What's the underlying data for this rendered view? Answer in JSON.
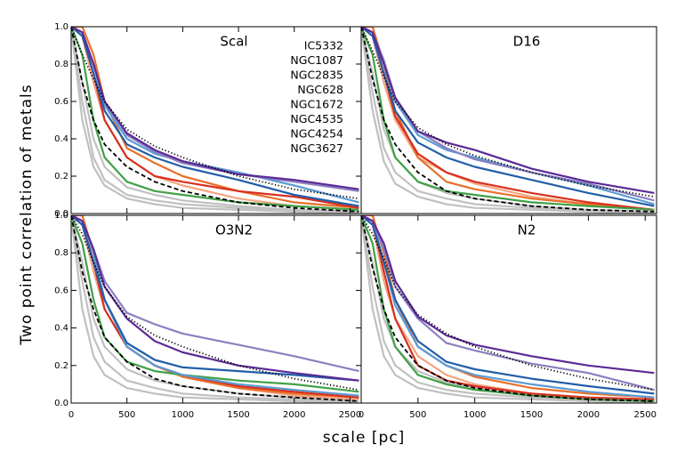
{
  "figure": {
    "xlabel": "scale [pc]",
    "ylabel": "Two point correlation of metals"
  },
  "chart_data": [
    {
      "type": "line",
      "title": "Scal",
      "legend": "top-right",
      "x": [
        0,
        100,
        200,
        300,
        500,
        750,
        1000,
        1500,
        2000,
        2580
      ],
      "xlim": [
        0,
        2600
      ],
      "ylim": [
        0,
        1.0
      ],
      "xticks": [
        0,
        500,
        1000,
        1500,
        2000,
        2500
      ],
      "yticks": [
        {
          "value": 0,
          "label": "0.0"
        },
        0.2,
        0.4,
        0.6,
        0.8,
        {
          "value": 1,
          "label": "1.0"
        }
      ],
      "background": [
        {
          "color": "#c0c0c0",
          "values": [
            1,
            0.5,
            0.25,
            0.15,
            0.08,
            0.05,
            0.03,
            0.02,
            0.01,
            0.0
          ]
        },
        {
          "color": "#c0c0c0",
          "values": [
            1,
            0.6,
            0.3,
            0.18,
            0.1,
            0.07,
            0.05,
            0.03,
            0.02,
            0.01
          ]
        },
        {
          "color": "#c0c0c0",
          "values": [
            1,
            0.7,
            0.4,
            0.25,
            0.14,
            0.1,
            0.07,
            0.04,
            0.02,
            0.01
          ]
        }
      ],
      "references": [
        {
          "style": "dashed",
          "color": "#000000",
          "values": [
            1,
            0.7,
            0.5,
            0.37,
            0.25,
            0.17,
            0.12,
            0.06,
            0.03,
            0.01
          ]
        },
        {
          "style": "dotted",
          "color": "#000000",
          "values": [
            1,
            0.85,
            0.72,
            0.6,
            0.45,
            0.36,
            0.3,
            0.2,
            0.13,
            0.08
          ]
        }
      ],
      "series": [
        {
          "name": "IC5332",
          "color": "#f4a582",
          "values": [
            1,
            0.95,
            0.7,
            0.5,
            0.3,
            0.2,
            0.15,
            0.08,
            0.04,
            0.02
          ]
        },
        {
          "name": "NGC1087",
          "color": "#e8702a",
          "values": [
            1,
            1,
            0.85,
            0.6,
            0.35,
            0.27,
            0.2,
            0.12,
            0.06,
            0.03
          ]
        },
        {
          "name": "NGC2835",
          "color": "#d7301f",
          "values": [
            1,
            0.97,
            0.75,
            0.5,
            0.3,
            0.2,
            0.17,
            0.12,
            0.09,
            0.03
          ]
        },
        {
          "name": "NGC628",
          "color": "#41a048",
          "values": [
            1,
            0.85,
            0.5,
            0.3,
            0.17,
            0.12,
            0.1,
            0.06,
            0.04,
            0.02
          ]
        },
        {
          "name": "NGC1672",
          "color": "#5b9bd5",
          "values": [
            1,
            0.97,
            0.8,
            0.58,
            0.4,
            0.32,
            0.28,
            0.22,
            0.15,
            0.06
          ]
        },
        {
          "name": "NGC4535",
          "color": "#225ea8",
          "values": [
            1,
            0.95,
            0.75,
            0.55,
            0.37,
            0.3,
            0.25,
            0.18,
            0.1,
            0.04
          ]
        },
        {
          "name": "NGC4254",
          "color": "#8c7fc0",
          "values": [
            1,
            0.97,
            0.8,
            0.6,
            0.42,
            0.33,
            0.27,
            0.21,
            0.17,
            0.12
          ]
        },
        {
          "name": "NGC3627",
          "color": "#5b2a96",
          "values": [
            1,
            0.97,
            0.8,
            0.6,
            0.43,
            0.34,
            0.28,
            0.21,
            0.18,
            0.13
          ]
        }
      ]
    },
    {
      "type": "line",
      "title": "D16",
      "x": [
        0,
        100,
        200,
        300,
        500,
        750,
        1000,
        1500,
        2000,
        2580
      ],
      "xlim": [
        0,
        2600
      ],
      "ylim": [
        0,
        1.0
      ],
      "background": [
        {
          "color": "#c0c0c0",
          "values": [
            1,
            0.55,
            0.28,
            0.16,
            0.09,
            0.05,
            0.03,
            0.02,
            0.01,
            0.0
          ]
        },
        {
          "color": "#c0c0c0",
          "values": [
            1,
            0.65,
            0.35,
            0.22,
            0.12,
            0.08,
            0.05,
            0.03,
            0.02,
            0.01
          ]
        },
        {
          "color": "#c0c0c0",
          "values": [
            1,
            0.75,
            0.45,
            0.3,
            0.17,
            0.11,
            0.08,
            0.04,
            0.02,
            0.01
          ]
        }
      ],
      "references": [
        {
          "style": "dashed",
          "color": "#000000",
          "values": [
            1,
            0.72,
            0.5,
            0.37,
            0.22,
            0.12,
            0.08,
            0.04,
            0.02,
            0.01
          ]
        },
        {
          "style": "dotted",
          "color": "#000000",
          "values": [
            1,
            0.87,
            0.73,
            0.6,
            0.46,
            0.37,
            0.31,
            0.22,
            0.15,
            0.09
          ]
        }
      ],
      "series": [
        {
          "color": "#f4a582",
          "values": [
            1,
            0.95,
            0.7,
            0.5,
            0.3,
            0.22,
            0.16,
            0.09,
            0.05,
            0.02
          ]
        },
        {
          "color": "#e8702a",
          "values": [
            1,
            1,
            0.8,
            0.55,
            0.3,
            0.17,
            0.13,
            0.08,
            0.05,
            0.02
          ]
        },
        {
          "color": "#d7301f",
          "values": [
            1,
            0.97,
            0.75,
            0.52,
            0.32,
            0.22,
            0.17,
            0.11,
            0.06,
            0.02
          ]
        },
        {
          "color": "#41a048",
          "values": [
            1,
            0.85,
            0.5,
            0.3,
            0.17,
            0.12,
            0.1,
            0.06,
            0.04,
            0.02
          ]
        },
        {
          "color": "#5b9bd5",
          "values": [
            1,
            0.97,
            0.8,
            0.6,
            0.42,
            0.34,
            0.3,
            0.22,
            0.15,
            0.05
          ]
        },
        {
          "color": "#225ea8",
          "values": [
            1,
            0.95,
            0.75,
            0.55,
            0.38,
            0.3,
            0.25,
            0.18,
            0.11,
            0.04
          ]
        },
        {
          "color": "#8c7fc0",
          "values": [
            1,
            0.97,
            0.82,
            0.62,
            0.44,
            0.35,
            0.29,
            0.22,
            0.16,
            0.07
          ]
        },
        {
          "color": "#5b2a96",
          "values": [
            1,
            0.97,
            0.8,
            0.62,
            0.44,
            0.38,
            0.34,
            0.24,
            0.17,
            0.11
          ]
        }
      ]
    },
    {
      "type": "line",
      "title": "O3N2",
      "x": [
        0,
        100,
        200,
        300,
        500,
        750,
        1000,
        1500,
        2000,
        2580
      ],
      "xlim": [
        0,
        2600
      ],
      "ylim": [
        0,
        1.0
      ],
      "xticks": [
        0,
        500,
        1000,
        1500,
        2000,
        2500
      ],
      "yticks": [
        {
          "value": 0,
          "label": "0.0"
        },
        0.2,
        0.4,
        0.6,
        0.8,
        {
          "value": 1,
          "label": "1.0"
        }
      ],
      "background": [
        {
          "color": "#c0c0c0",
          "values": [
            1,
            0.5,
            0.25,
            0.15,
            0.08,
            0.05,
            0.03,
            0.02,
            0.01,
            0.0
          ]
        },
        {
          "color": "#c0c0c0",
          "values": [
            1,
            0.65,
            0.35,
            0.22,
            0.12,
            0.08,
            0.05,
            0.03,
            0.02,
            0.01
          ]
        },
        {
          "color": "#c0c0c0",
          "values": [
            1,
            0.75,
            0.45,
            0.3,
            0.18,
            0.12,
            0.09,
            0.05,
            0.03,
            0.01
          ]
        }
      ],
      "references": [
        {
          "style": "dashed",
          "color": "#000000",
          "values": [
            1,
            0.7,
            0.5,
            0.35,
            0.22,
            0.13,
            0.09,
            0.05,
            0.03,
            0.01
          ]
        },
        {
          "style": "dotted",
          "color": "#000000",
          "values": [
            1,
            0.9,
            0.75,
            0.62,
            0.46,
            0.36,
            0.3,
            0.2,
            0.13,
            0.07
          ]
        }
      ],
      "series": [
        {
          "color": "#f4a582",
          "values": [
            1,
            0.95,
            0.7,
            0.5,
            0.3,
            0.2,
            0.14,
            0.08,
            0.04,
            0.02
          ]
        },
        {
          "color": "#e8702a",
          "values": [
            1,
            1,
            0.8,
            0.55,
            0.3,
            0.2,
            0.14,
            0.08,
            0.05,
            0.03
          ]
        },
        {
          "color": "#d7301f",
          "values": [
            1,
            0.97,
            0.75,
            0.5,
            0.3,
            0.2,
            0.15,
            0.09,
            0.06,
            0.03
          ]
        },
        {
          "color": "#41a048",
          "values": [
            1,
            0.85,
            0.55,
            0.35,
            0.22,
            0.17,
            0.15,
            0.12,
            0.1,
            0.06
          ]
        },
        {
          "color": "#5b9bd5",
          "values": [
            1,
            0.97,
            0.8,
            0.55,
            0.3,
            0.2,
            0.15,
            0.1,
            0.07,
            0.04
          ]
        },
        {
          "color": "#225ea8",
          "values": [
            1,
            0.95,
            0.75,
            0.55,
            0.32,
            0.23,
            0.19,
            0.17,
            0.15,
            0.12
          ]
        },
        {
          "color": "#8c7fc0",
          "values": [
            1,
            0.97,
            0.82,
            0.65,
            0.48,
            0.42,
            0.37,
            0.31,
            0.25,
            0.17
          ]
        },
        {
          "color": "#5b2a96",
          "values": [
            1,
            0.97,
            0.82,
            0.62,
            0.45,
            0.33,
            0.27,
            0.2,
            0.16,
            0.12
          ]
        }
      ]
    },
    {
      "type": "line",
      "title": "N2",
      "x": [
        0,
        100,
        200,
        300,
        500,
        750,
        1000,
        1500,
        2000,
        2580
      ],
      "xlim": [
        0,
        2600
      ],
      "ylim": [
        0,
        1.0
      ],
      "xticks": [
        0,
        500,
        1000,
        1500,
        2000,
        2500
      ],
      "background": [
        {
          "color": "#c0c0c0",
          "values": [
            1,
            0.5,
            0.25,
            0.15,
            0.08,
            0.05,
            0.03,
            0.02,
            0.01,
            0.0
          ]
        },
        {
          "color": "#c0c0c0",
          "values": [
            1,
            0.62,
            0.33,
            0.2,
            0.11,
            0.07,
            0.05,
            0.03,
            0.02,
            0.01
          ]
        },
        {
          "color": "#c0c0c0",
          "values": [
            1,
            0.75,
            0.45,
            0.3,
            0.17,
            0.11,
            0.08,
            0.04,
            0.02,
            0.01
          ]
        }
      ],
      "references": [
        {
          "style": "dashed",
          "color": "#000000",
          "values": [
            1,
            0.72,
            0.5,
            0.35,
            0.2,
            0.12,
            0.08,
            0.04,
            0.02,
            0.01
          ]
        },
        {
          "style": "dotted",
          "color": "#000000",
          "values": [
            1,
            0.9,
            0.77,
            0.62,
            0.47,
            0.37,
            0.3,
            0.2,
            0.13,
            0.07
          ]
        }
      ],
      "series": [
        {
          "color": "#f4a582",
          "values": [
            1,
            0.95,
            0.65,
            0.45,
            0.25,
            0.15,
            0.1,
            0.05,
            0.03,
            0.01
          ]
        },
        {
          "color": "#e8702a",
          "values": [
            1,
            1,
            0.8,
            0.55,
            0.3,
            0.2,
            0.14,
            0.08,
            0.05,
            0.03
          ]
        },
        {
          "color": "#d7301f",
          "values": [
            1,
            0.97,
            0.7,
            0.45,
            0.2,
            0.12,
            0.09,
            0.05,
            0.03,
            0.02
          ]
        },
        {
          "color": "#41a048",
          "values": [
            1,
            0.85,
            0.5,
            0.3,
            0.15,
            0.1,
            0.07,
            0.04,
            0.02,
            0.01
          ]
        },
        {
          "color": "#5b9bd5",
          "values": [
            1,
            0.97,
            0.75,
            0.52,
            0.3,
            0.2,
            0.15,
            0.1,
            0.06,
            0.03
          ]
        },
        {
          "color": "#225ea8",
          "values": [
            1,
            0.95,
            0.75,
            0.55,
            0.33,
            0.22,
            0.18,
            0.13,
            0.09,
            0.05
          ]
        },
        {
          "color": "#8c7fc0",
          "values": [
            1,
            0.97,
            0.82,
            0.62,
            0.45,
            0.32,
            0.28,
            0.21,
            0.16,
            0.07
          ]
        },
        {
          "color": "#5b2a96",
          "values": [
            1,
            0.97,
            0.85,
            0.65,
            0.46,
            0.36,
            0.31,
            0.25,
            0.2,
            0.16
          ]
        }
      ]
    }
  ]
}
